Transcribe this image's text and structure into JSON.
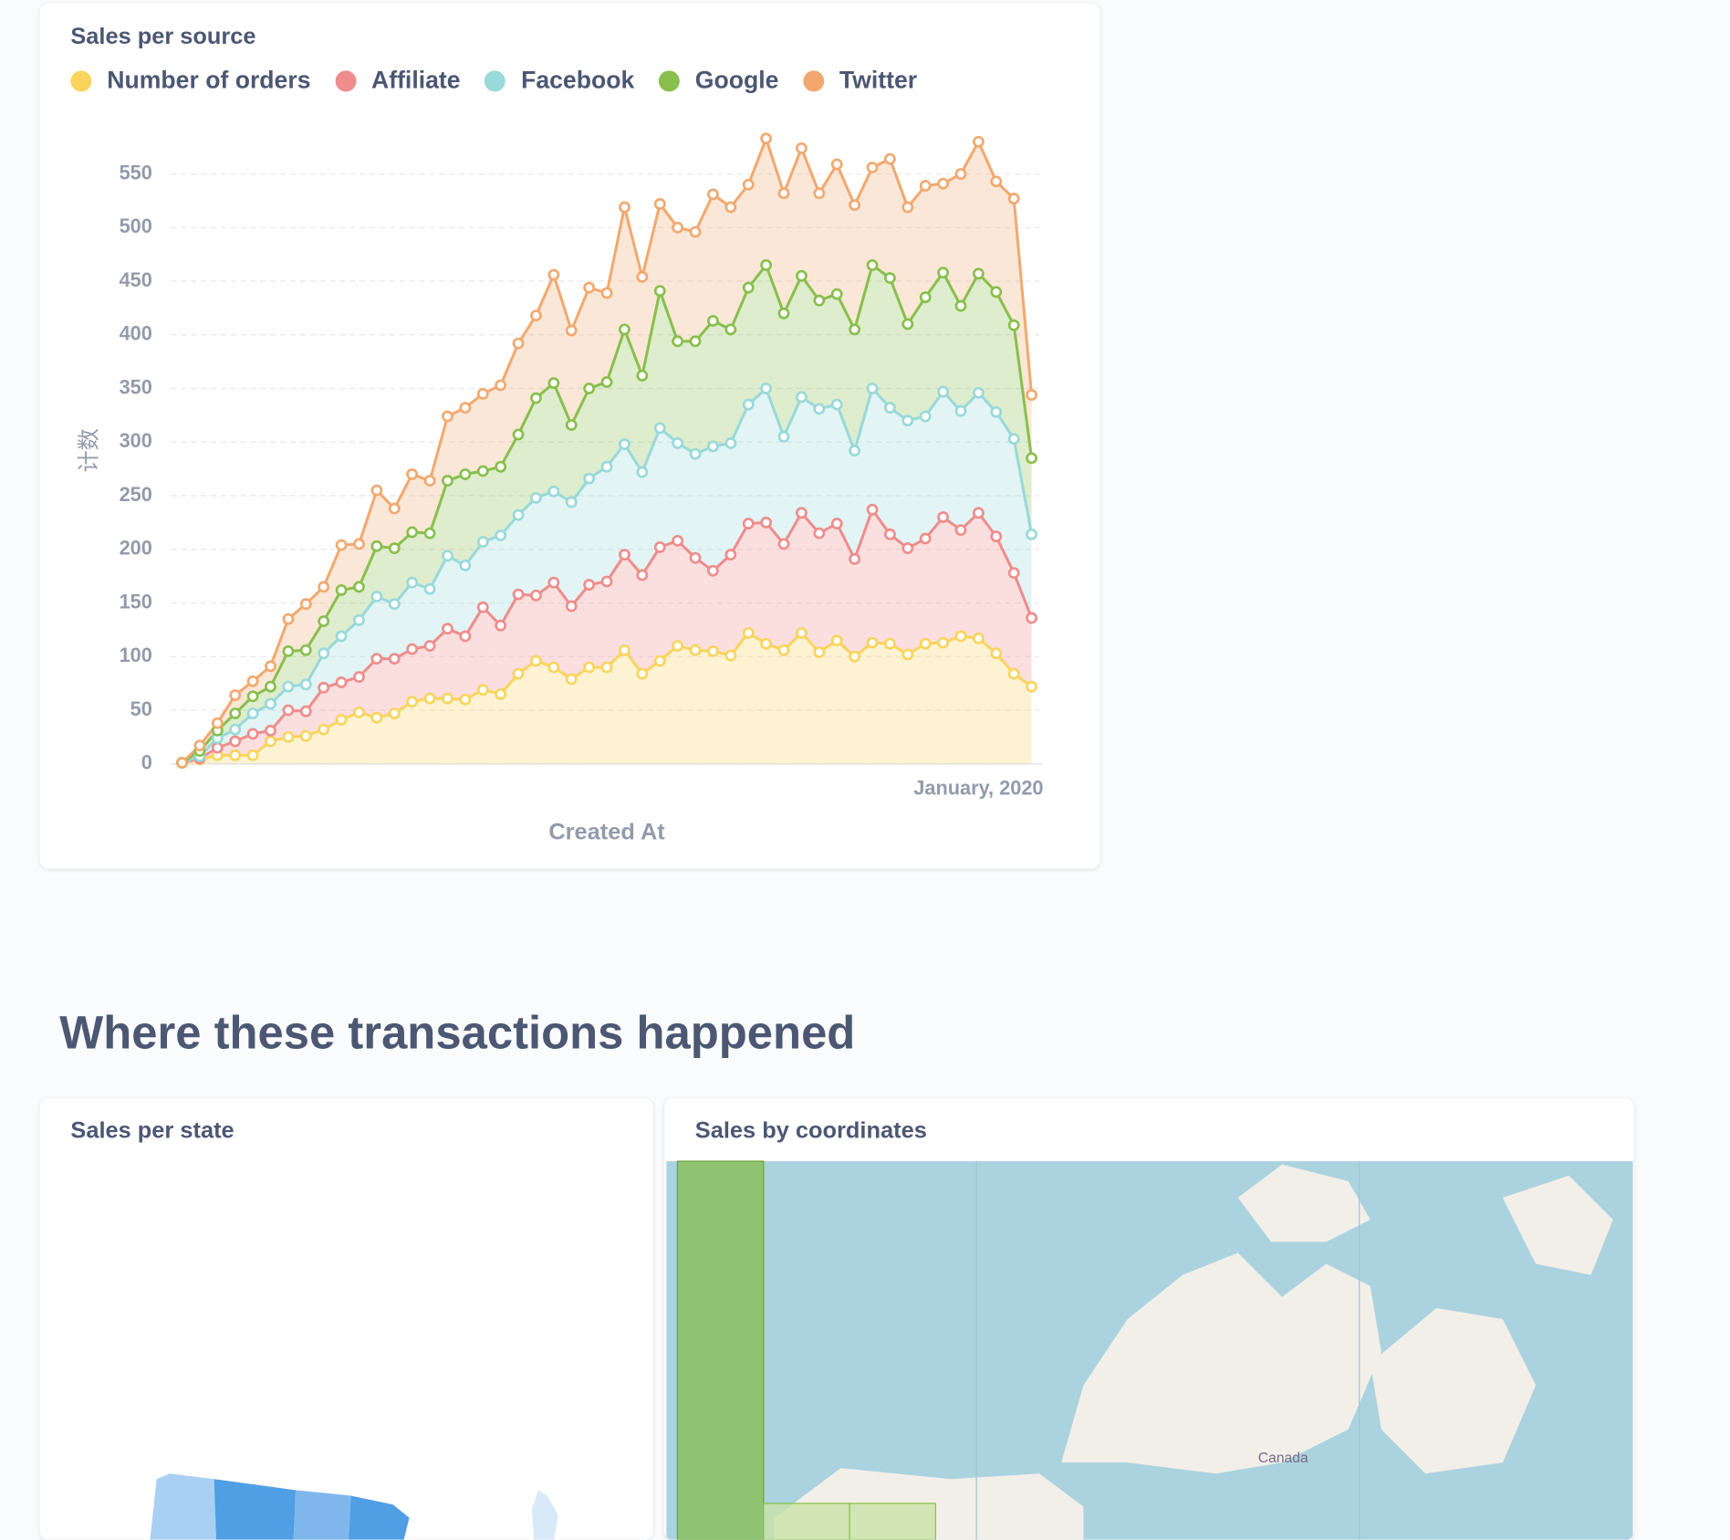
{
  "chart_data": {
    "type": "area",
    "stacked": true,
    "title": "Sales per source",
    "x_label": "Created At",
    "y_label": "计数",
    "categories": [
      null,
      null,
      null,
      null,
      null,
      null,
      null,
      null,
      null,
      null,
      null,
      null,
      null,
      null,
      null,
      null,
      null,
      null,
      null,
      null,
      null,
      null,
      null,
      null,
      null,
      null,
      null,
      null,
      null,
      null,
      null,
      null,
      null,
      null,
      null,
      null,
      null,
      null,
      null,
      null,
      null,
      null,
      null,
      null,
      null,
      "January, 2020",
      null,
      null,
      null
    ],
    "series": [
      {
        "name": "Number of orders",
        "color": "#f9d45c",
        "values": [
          1,
          4,
          8,
          8,
          8,
          21,
          25,
          26,
          32,
          41,
          48,
          43,
          47,
          58,
          61,
          61,
          60,
          69,
          65,
          84,
          96,
          90,
          79,
          90,
          90,
          106,
          84,
          96,
          110,
          106,
          105,
          101,
          122,
          112,
          106,
          122,
          104,
          115,
          100,
          113,
          112,
          102,
          112,
          113,
          119,
          117,
          103,
          84,
          72
        ]
      },
      {
        "name": "Affiliate",
        "color": "#ef8c8c",
        "values": [
          0,
          1,
          7,
          13,
          20,
          10,
          25,
          23,
          39,
          35,
          33,
          55,
          51,
          49,
          49,
          65,
          59,
          77,
          64,
          74,
          61,
          79,
          68,
          77,
          80,
          89,
          92,
          106,
          98,
          86,
          75,
          94,
          102,
          113,
          99,
          112,
          111,
          109,
          91,
          124,
          102,
          99,
          98,
          117,
          99,
          117,
          109,
          94,
          64
        ]
      },
      {
        "name": "Facebook",
        "color": "#98d9d9",
        "values": [
          0,
          2,
          9,
          11,
          19,
          25,
          22,
          25,
          32,
          43,
          53,
          58,
          51,
          62,
          53,
          68,
          66,
          61,
          84,
          74,
          91,
          85,
          97,
          99,
          107,
          103,
          96,
          111,
          91,
          97,
          116,
          104,
          111,
          125,
          100,
          108,
          116,
          111,
          101,
          113,
          118,
          119,
          114,
          117,
          111,
          112,
          116,
          125,
          78
        ]
      },
      {
        "name": "Google",
        "color": "#88bf4d",
        "values": [
          0,
          5,
          7,
          15,
          16,
          16,
          33,
          32,
          30,
          43,
          31,
          47,
          52,
          47,
          52,
          70,
          85,
          66,
          64,
          75,
          93,
          101,
          72,
          84,
          79,
          107,
          90,
          128,
          95,
          105,
          117,
          106,
          109,
          115,
          115,
          113,
          101,
          103,
          113,
          115,
          121,
          90,
          111,
          111,
          98,
          111,
          112,
          106,
          71
        ]
      },
      {
        "name": "Twitter",
        "color": "#f2a86f",
        "values": [
          0,
          5,
          7,
          17,
          14,
          19,
          30,
          43,
          32,
          42,
          40,
          52,
          37,
          54,
          49,
          60,
          62,
          72,
          76,
          85,
          77,
          101,
          88,
          94,
          83,
          114,
          92,
          81,
          106,
          102,
          118,
          114,
          96,
          118,
          112,
          119,
          100,
          121,
          116,
          91,
          111,
          109,
          104,
          83,
          123,
          123,
          103,
          118,
          59
        ]
      }
    ],
    "ylim": [
      0,
      600
    ],
    "yticks": [
      0,
      50,
      100,
      150,
      200,
      250,
      300,
      350,
      400,
      450,
      500,
      550
    ],
    "grid": true
  },
  "section": {
    "heading": "Where these transactions happened"
  },
  "cards": [
    {
      "title": "Sales per state"
    },
    {
      "title": "Sales by coordinates",
      "map_label": "Canada"
    }
  ]
}
